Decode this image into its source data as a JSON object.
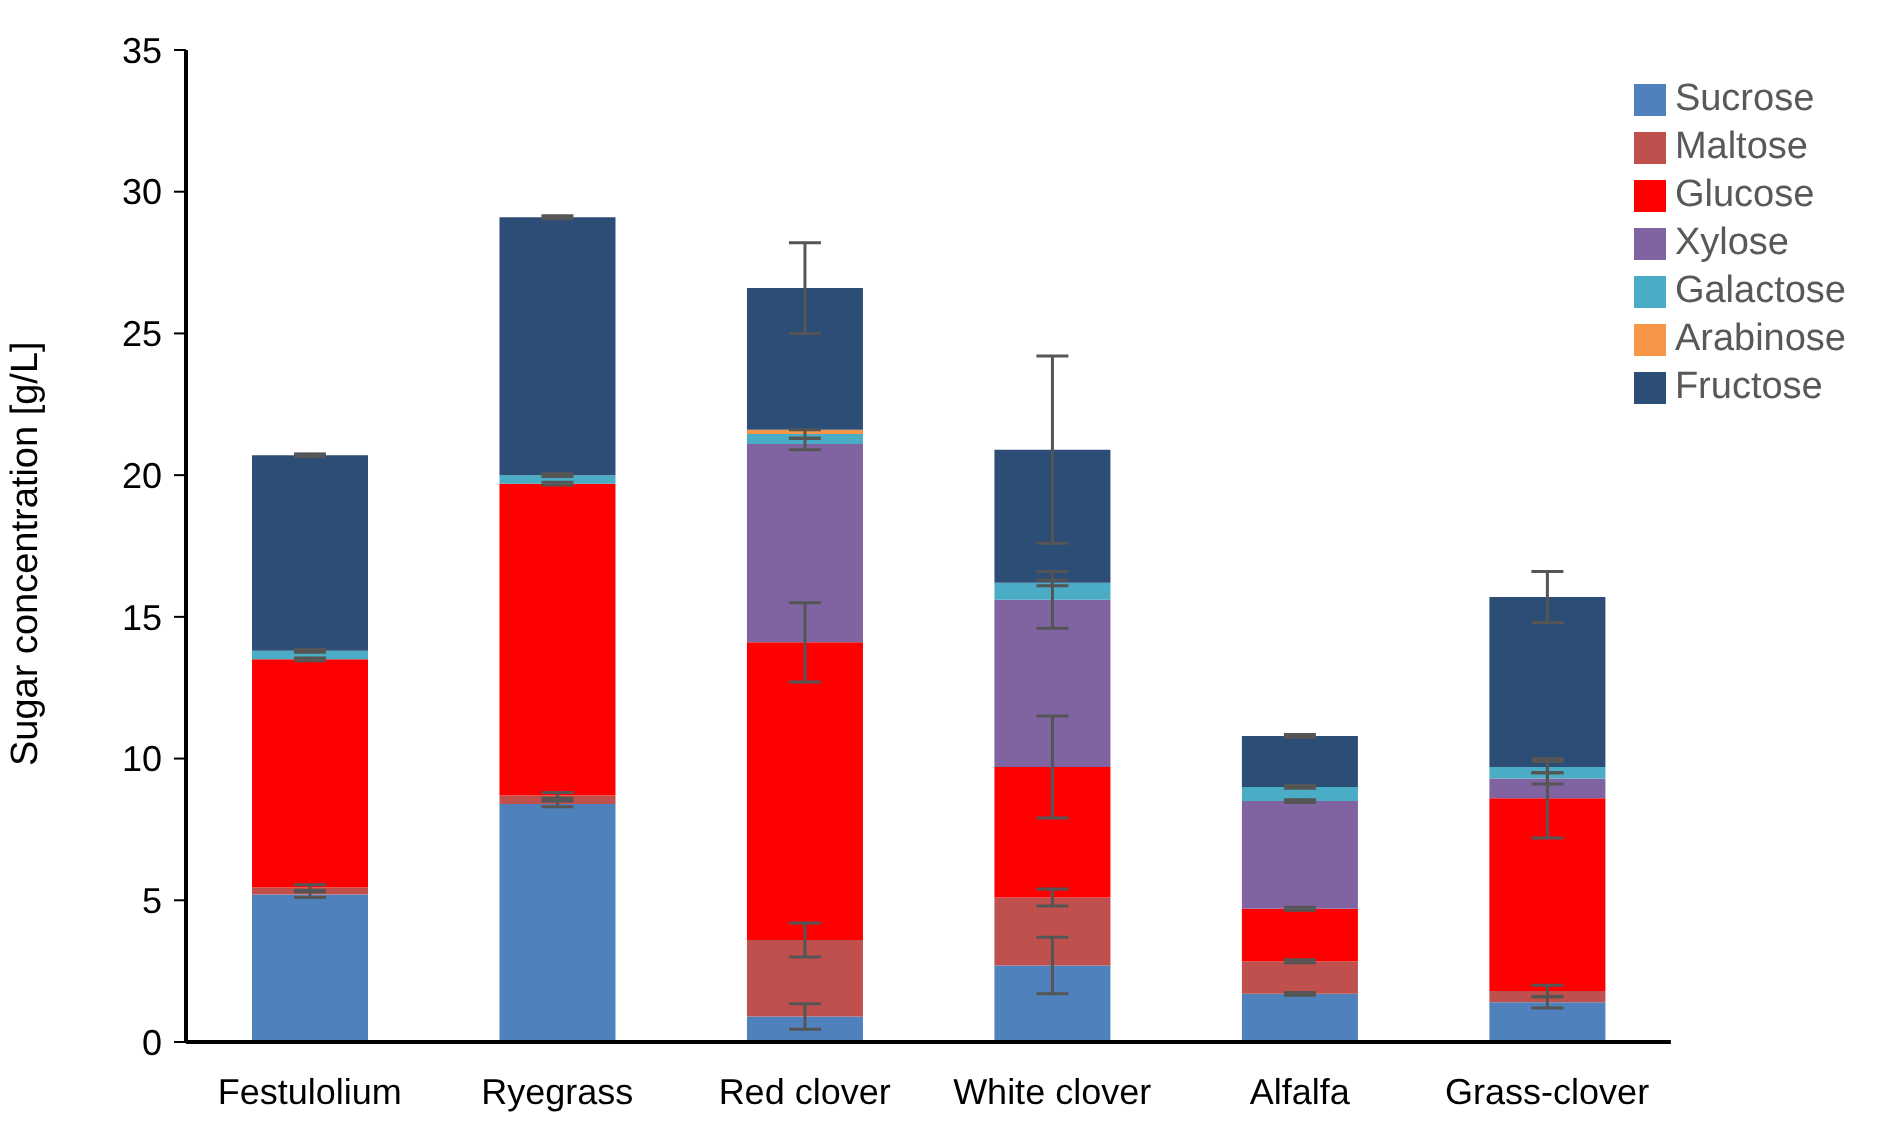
{
  "chart_data": {
    "type": "bar",
    "stacked": true,
    "ylabel": "Sugar concentration [g/L]",
    "categories": [
      "Festulolium",
      "Ryegrass",
      "Red clover",
      "White clover",
      "Alfalfa",
      "Grass-clover"
    ],
    "ylim": [
      0,
      35
    ],
    "yticks": [
      0,
      5,
      10,
      15,
      20,
      25,
      30,
      35
    ],
    "grid": false,
    "legend": "top right",
    "series": [
      {
        "name": "Sucrose",
        "color": "#4f81bd",
        "values": [
          5.2,
          8.4,
          0.9,
          2.7,
          1.7,
          1.4
        ],
        "errors": [
          0.1,
          0.1,
          0.45,
          1.0,
          0.05,
          0.2
        ]
      },
      {
        "name": "Maltose",
        "color": "#c0504d",
        "values": [
          0.25,
          0.3,
          2.7,
          2.4,
          1.15,
          0.4
        ],
        "errors": [
          0.1,
          0.1,
          0.6,
          0.3,
          0.05,
          0.2
        ]
      },
      {
        "name": "Glucose",
        "color": "#ff0000",
        "values": [
          8.05,
          11.0,
          10.5,
          4.6,
          1.85,
          6.8
        ],
        "errors": [
          0.05,
          0.05,
          1.4,
          1.8,
          0.05,
          1.4
        ]
      },
      {
        "name": "Xylose",
        "color": "#8064a2",
        "values": [
          0,
          0,
          7.0,
          5.9,
          3.8,
          0.7
        ],
        "errors": [
          null,
          null,
          0.2,
          1.0,
          0.05,
          0.2
        ]
      },
      {
        "name": "Galactose",
        "color": "#4bacc6",
        "values": [
          0.3,
          0.3,
          0.35,
          0.6,
          0.5,
          0.4
        ],
        "errors": [
          0.05,
          0.05,
          0.15,
          0.1,
          0.05,
          0.2
        ]
      },
      {
        "name": "Arabinose",
        "color": "#f79646",
        "values": [
          0,
          0,
          0.15,
          0,
          0,
          0
        ],
        "errors": [
          null,
          null,
          null,
          null,
          null,
          null
        ]
      },
      {
        "name": "Fructose",
        "color": "#2c4d75",
        "values": [
          6.9,
          9.1,
          5.0,
          4.7,
          1.8,
          6.0
        ],
        "errors": [
          0.05,
          0.05,
          1.6,
          3.3,
          0.05,
          0.9
        ]
      }
    ]
  }
}
